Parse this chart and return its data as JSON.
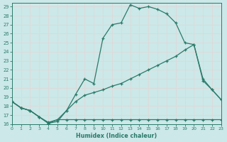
{
  "xlabel": "Humidex (Indice chaleur)",
  "background_color": "#cce8e8",
  "grid_color": "#e0d8d8",
  "line_color": "#2a7a6a",
  "xlim": [
    0,
    23
  ],
  "ylim": [
    16,
    29.4
  ],
  "xticks": [
    0,
    1,
    2,
    3,
    4,
    5,
    6,
    7,
    8,
    9,
    10,
    11,
    12,
    13,
    14,
    15,
    16,
    17,
    18,
    19,
    20,
    21,
    22,
    23
  ],
  "yticks": [
    16,
    17,
    18,
    19,
    20,
    21,
    22,
    23,
    24,
    25,
    26,
    27,
    28,
    29
  ],
  "curve1_x": [
    0,
    1,
    2,
    3,
    4,
    5,
    6,
    7,
    8,
    9,
    10,
    11,
    12,
    13,
    14,
    15,
    16,
    17,
    18,
    19,
    20,
    21,
    22,
    23
  ],
  "curve1_y": [
    18.5,
    17.8,
    17.5,
    16.8,
    16.1,
    16.3,
    17.5,
    19.3,
    21.0,
    20.5,
    25.5,
    27.0,
    27.2,
    29.2,
    28.8,
    29.0,
    28.7,
    28.2,
    27.2,
    25.0,
    24.8,
    20.8,
    19.8,
    18.7
  ],
  "curve2_x": [
    0,
    1,
    2,
    3,
    4,
    5,
    6,
    7,
    8,
    9,
    10,
    11,
    12,
    13,
    14,
    15,
    16,
    17,
    18,
    19,
    20,
    21,
    22,
    23
  ],
  "curve2_y": [
    18.5,
    17.8,
    17.5,
    16.8,
    16.1,
    16.5,
    17.5,
    18.5,
    19.2,
    19.5,
    19.8,
    20.2,
    20.5,
    21.0,
    21.5,
    22.0,
    22.5,
    23.0,
    23.5,
    24.2,
    24.8,
    21.0,
    19.8,
    18.7
  ],
  "curve3_x": [
    0,
    1,
    2,
    3,
    4,
    5,
    6,
    7,
    8,
    9,
    10,
    11,
    12,
    13,
    14,
    15,
    16,
    17,
    18,
    19,
    20,
    21,
    22,
    23
  ],
  "curve3_y": [
    18.5,
    17.8,
    17.5,
    16.8,
    16.2,
    16.5,
    16.5,
    16.5,
    16.5,
    16.5,
    16.5,
    16.5,
    16.5,
    16.5,
    16.5,
    16.5,
    16.5,
    16.5,
    16.5,
    16.5,
    16.5,
    16.5,
    16.5,
    16.5
  ]
}
